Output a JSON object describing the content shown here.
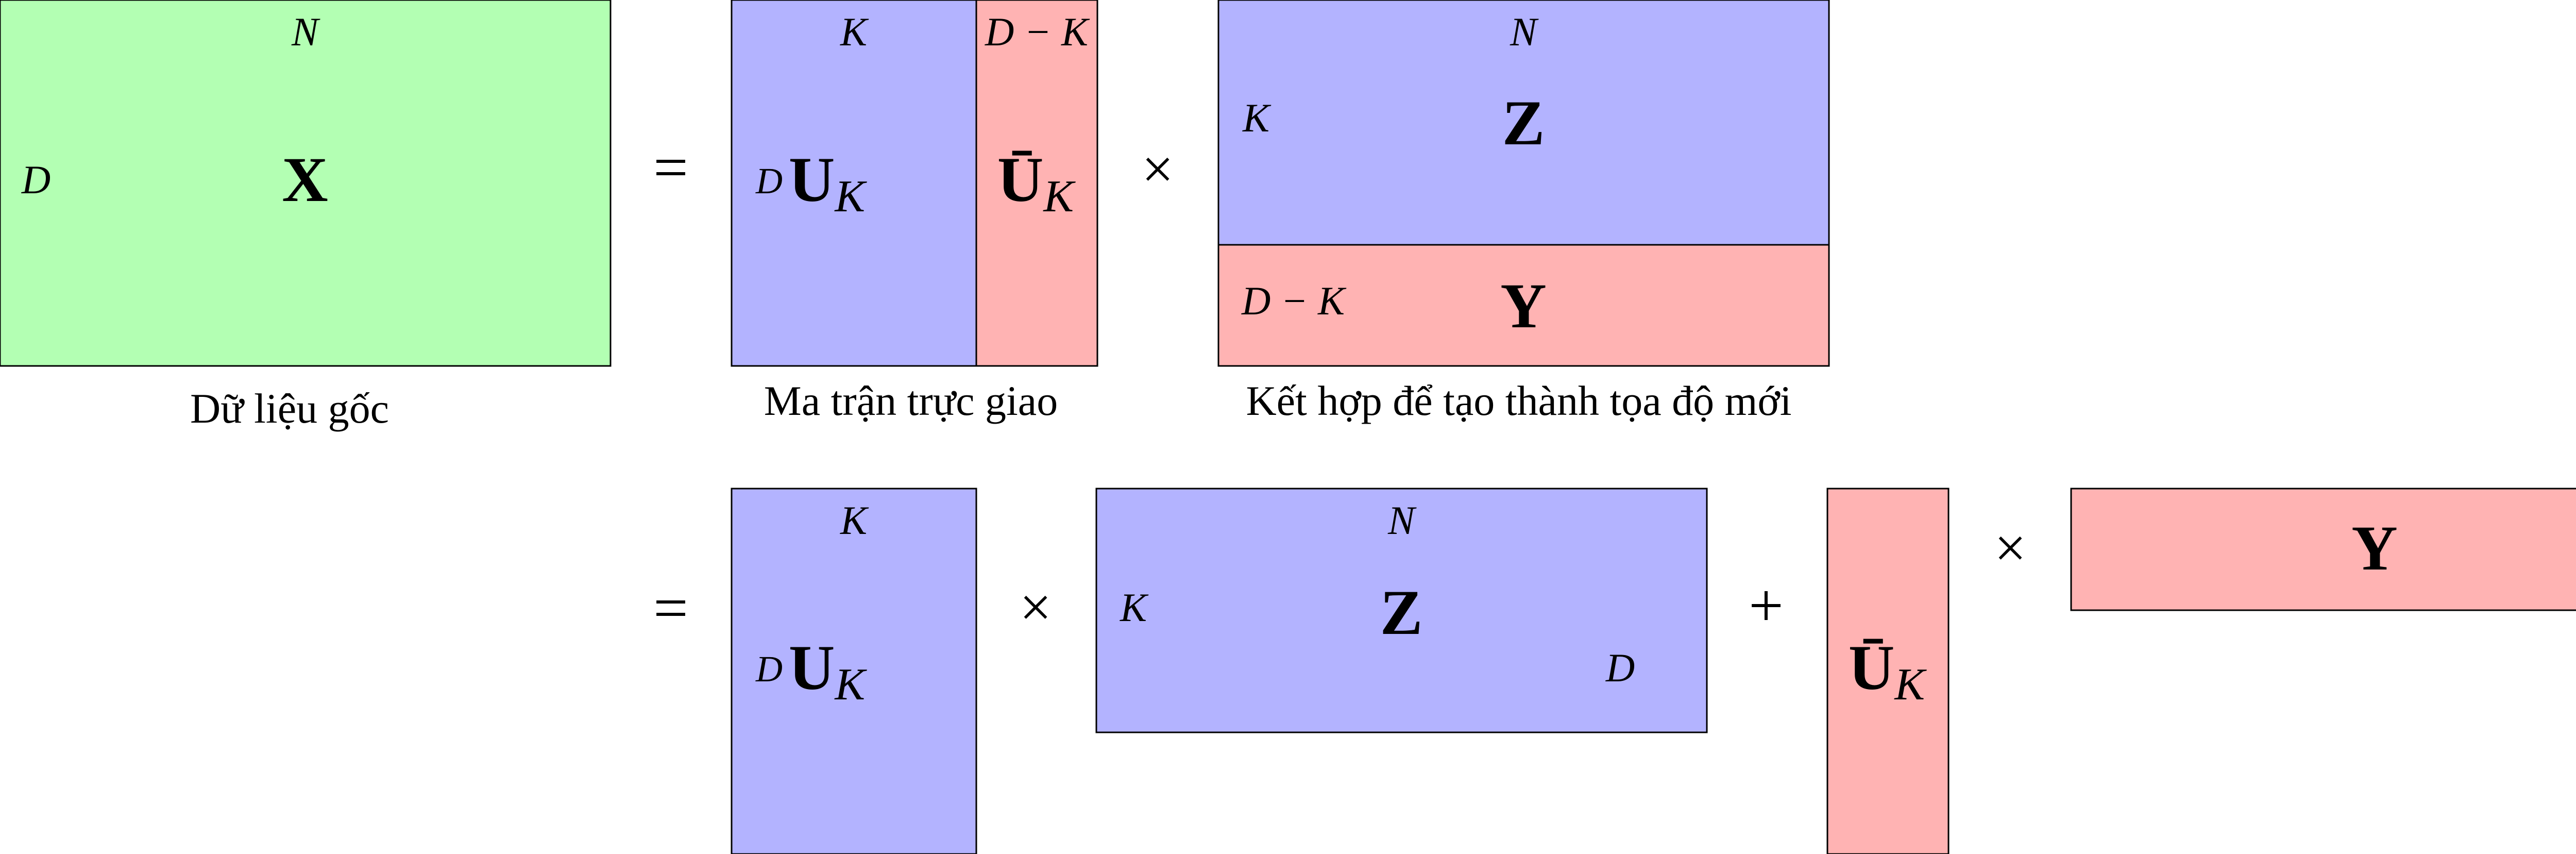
{
  "colors": {
    "green": "#b3ffb3",
    "blue": "#b3b3ff",
    "pink": "#ffb3b3",
    "stroke": "#000000"
  },
  "symbols": {
    "equals": "=",
    "times": "×",
    "plus": "+"
  },
  "matrices": {
    "X": {
      "label": "X",
      "rows": "D",
      "cols": "N",
      "caption": "Dữ liệu gốc"
    },
    "U": {
      "label": "U",
      "sub": "K",
      "rows": "D",
      "cols": "K",
      "cols_rest": "D − K",
      "caption": "Ma trận trực giao"
    },
    "Ubar": {
      "label": "Ū",
      "sub": "K"
    },
    "Z": {
      "label": "Z",
      "rows": "K",
      "cols": "N",
      "caption": "Kết hợp để tạo thành tọa độ mới"
    },
    "Y": {
      "label": "Y",
      "rows": "D − K"
    },
    "Z2": {
      "label": "Z",
      "rows": "K",
      "cols": "N",
      "extra": "D"
    }
  }
}
